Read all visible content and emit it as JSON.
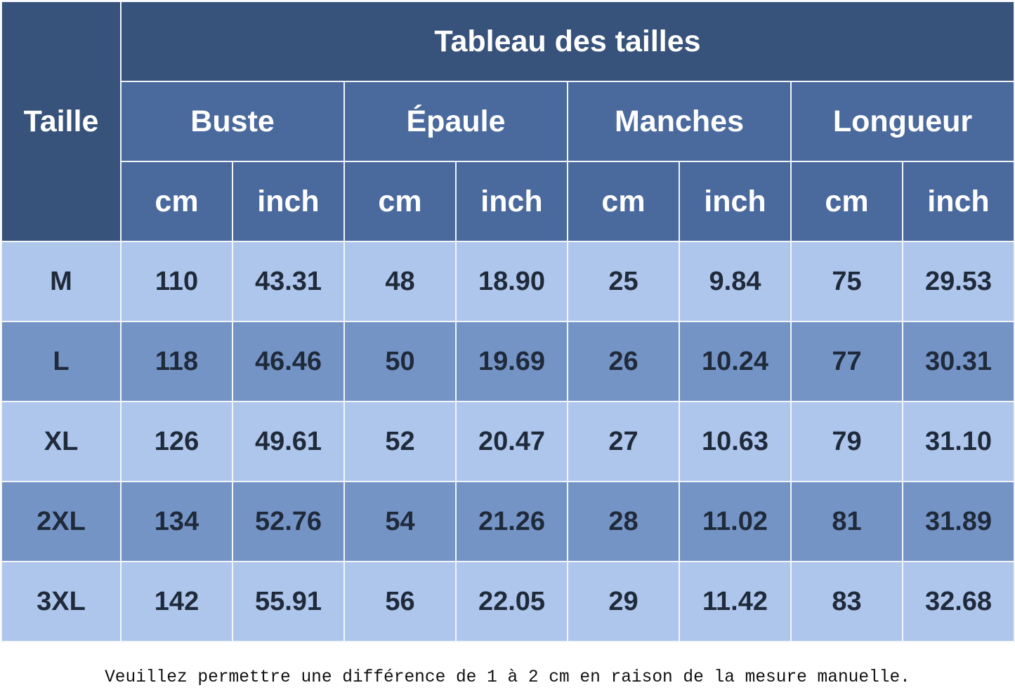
{
  "table": {
    "title": "Tableau des tailles",
    "size_header": "Taille",
    "groups": [
      "Buste",
      "Épaule",
      "Manches",
      "Longueur"
    ],
    "units": [
      "cm",
      "inch"
    ],
    "rows": [
      {
        "size": "M",
        "values": [
          "110",
          "43.31",
          "48",
          "18.90",
          "25",
          "9.84",
          "75",
          "29.53"
        ]
      },
      {
        "size": "L",
        "values": [
          "118",
          "46.46",
          "50",
          "19.69",
          "26",
          "10.24",
          "77",
          "30.31"
        ]
      },
      {
        "size": "XL",
        "values": [
          "126",
          "49.61",
          "52",
          "20.47",
          "27",
          "10.63",
          "79",
          "31.10"
        ]
      },
      {
        "size": "2XL",
        "values": [
          "134",
          "52.76",
          "54",
          "21.26",
          "28",
          "11.02",
          "81",
          "31.89"
        ]
      },
      {
        "size": "3XL",
        "values": [
          "142",
          "55.91",
          "56",
          "22.05",
          "29",
          "11.42",
          "83",
          "32.68"
        ]
      }
    ]
  },
  "note": "Veuillez permettre une différence de 1 à 2 cm en raison de la mesure manuelle.",
  "colors": {
    "header_dark": "#37527b",
    "header_mid": "#4a6a9e",
    "row_light": "#aec6ec",
    "row_dark": "#7594c6"
  }
}
